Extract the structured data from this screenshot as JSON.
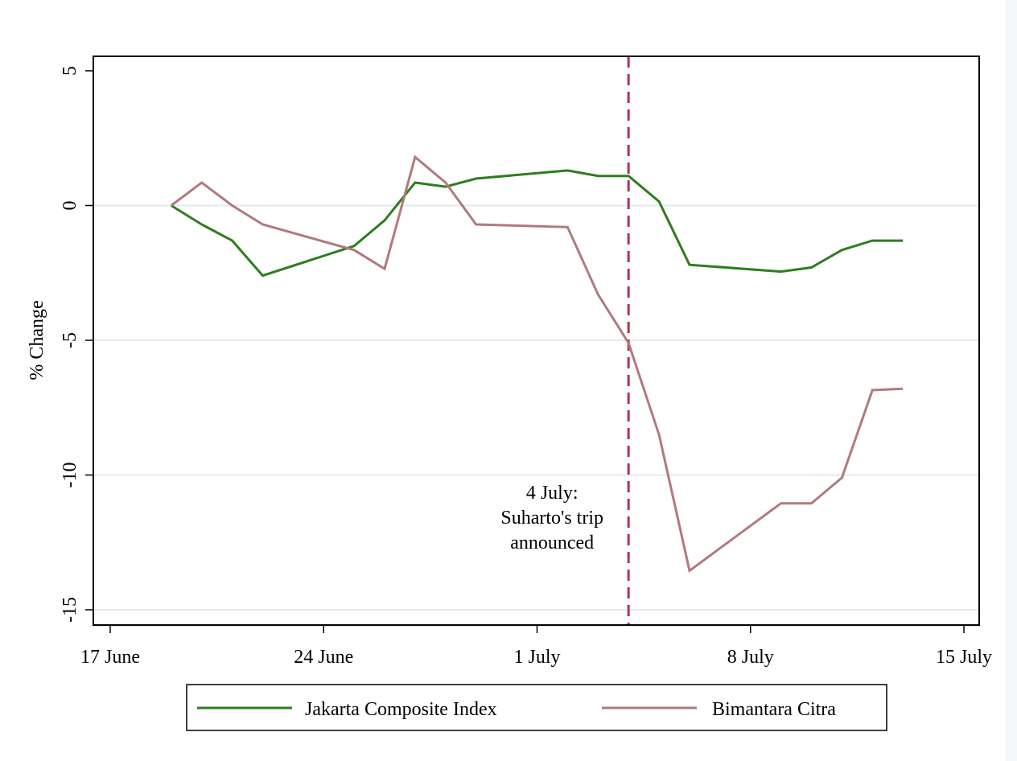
{
  "chart_data": {
    "type": "line",
    "title": "",
    "xlabel": "",
    "ylabel": "% Change",
    "xlim": [
      "1998-06-17",
      "1998-07-15"
    ],
    "ylim": [
      -15.5,
      5.5
    ],
    "y_ticks": [
      5,
      0,
      -5,
      -10,
      -15
    ],
    "y_tick_labels": [
      "5",
      "0",
      "-5",
      "-10",
      "-15"
    ],
    "x_ticks": [
      "1998-06-17",
      "1998-06-24",
      "1998-07-01",
      "1998-07-08",
      "1998-07-15"
    ],
    "x_tick_labels": [
      "17 June",
      "24 June",
      "1 July",
      "8 July",
      "15 July"
    ],
    "grid": "horizontal",
    "legend_position": "bottom",
    "event_line": {
      "x": "1998-07-04",
      "color": "#b5334f",
      "label_lines": [
        "4 July:",
        "Suharto's trip",
        "announced"
      ]
    },
    "series": [
      {
        "name": "Jakarta Composite Index",
        "color": "#2e7d1f",
        "points": [
          [
            "1998-06-19",
            0.0
          ],
          [
            "1998-06-20",
            -0.7
          ],
          [
            "1998-06-21",
            -1.3
          ],
          [
            "1998-06-22",
            -2.6
          ],
          [
            "1998-06-25",
            -1.5
          ],
          [
            "1998-06-26",
            -0.55
          ],
          [
            "1998-06-27",
            0.85
          ],
          [
            "1998-06-28",
            0.7
          ],
          [
            "1998-06-29",
            1.0
          ],
          [
            "1998-07-02",
            1.3
          ],
          [
            "1998-07-03",
            1.1
          ],
          [
            "1998-07-04",
            1.1
          ],
          [
            "1998-07-05",
            0.15
          ],
          [
            "1998-07-06",
            -2.2
          ],
          [
            "1998-07-09",
            -2.45
          ],
          [
            "1998-07-10",
            -2.3
          ],
          [
            "1998-07-11",
            -1.65
          ],
          [
            "1998-07-12",
            -1.3
          ],
          [
            "1998-07-13",
            -1.3
          ]
        ]
      },
      {
        "name": "Bimantara Citra",
        "color": "#b07a7f",
        "points": [
          [
            "1998-06-19",
            0.0
          ],
          [
            "1998-06-20",
            0.85
          ],
          [
            "1998-06-21",
            0.0
          ],
          [
            "1998-06-22",
            -0.7
          ],
          [
            "1998-06-25",
            -1.65
          ],
          [
            "1998-06-26",
            -2.35
          ],
          [
            "1998-06-27",
            1.8
          ],
          [
            "1998-06-28",
            0.85
          ],
          [
            "1998-06-29",
            -0.7
          ],
          [
            "1998-07-02",
            -0.8
          ],
          [
            "1998-07-03",
            -3.3
          ],
          [
            "1998-07-04",
            -5.1
          ],
          [
            "1998-07-05",
            -8.5
          ],
          [
            "1998-07-06",
            -13.55
          ],
          [
            "1998-07-09",
            -11.05
          ],
          [
            "1998-07-10",
            -11.05
          ],
          [
            "1998-07-11",
            -10.1
          ],
          [
            "1998-07-12",
            -6.85
          ],
          [
            "1998-07-13",
            -6.8
          ]
        ]
      }
    ]
  }
}
